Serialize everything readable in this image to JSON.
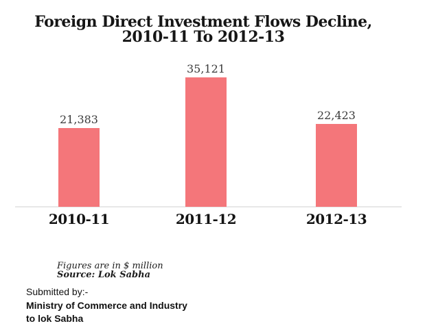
{
  "title": {
    "line1": "Foreign Direct Investment Flows Decline,",
    "line2": "2010-11 To 2012-13"
  },
  "chart_data": {
    "type": "bar",
    "title": "Foreign Direct Investment Flows Decline, 2010-11 To 2012-13",
    "categories": [
      "2010-11",
      "2011-12",
      "2012-13"
    ],
    "values": [
      21383,
      35121,
      22423
    ],
    "value_labels": [
      "21,383",
      "35,121",
      "22,423"
    ],
    "xlabel": "",
    "ylabel": "",
    "ylim": [
      0,
      35121
    ],
    "grid": false,
    "legend": false,
    "bar_color": "#F4767A",
    "axis_line_color": "#E7E7E7",
    "unit_note": "Figures are in $ million",
    "source": "Lok Sabha"
  },
  "footnote": {
    "line1": "Figures are in $ million",
    "line2": "Source: Lok Sabha"
  },
  "submitted": {
    "line1": "Submitted by:-",
    "line2": "Ministry of Commerce and Industry",
    "line3": "to lok Sabha"
  }
}
